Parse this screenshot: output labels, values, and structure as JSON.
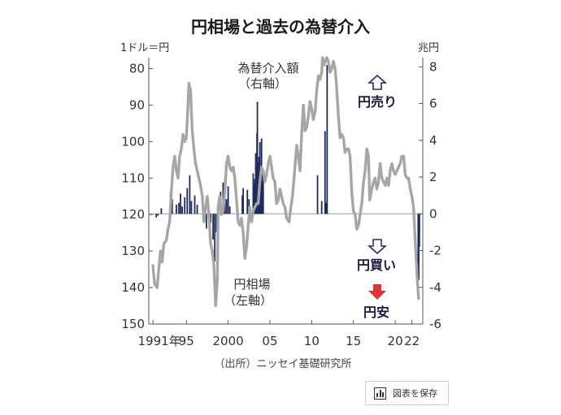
{
  "chart_data": {
    "type": "line",
    "title": "円相場と過去の為替介入",
    "left_unit": "1ドル＝円",
    "right_unit": "兆円",
    "left_axis": {
      "ticks": [
        80,
        90,
        100,
        110,
        120,
        130,
        140,
        150
      ],
      "range": [
        77,
        150
      ],
      "inverted": true
    },
    "right_axis": {
      "ticks": [
        8,
        6,
        4,
        2,
        0,
        -2,
        -4,
        -6
      ],
      "range": [
        8.5,
        -6
      ]
    },
    "x_ticks": [
      {
        "year": 1991,
        "label": "1991年"
      },
      {
        "year": 1995,
        "label": "95"
      },
      {
        "year": 2000,
        "label": "2000"
      },
      {
        "year": 2005,
        "label": "05"
      },
      {
        "year": 2010,
        "label": "10"
      },
      {
        "year": 2015,
        "label": "15"
      },
      {
        "year": 2020,
        "label": "20"
      },
      {
        "year": 2022,
        "label": "22"
      }
    ],
    "x_range": [
      1990.5,
      2023.3
    ],
    "series": [
      {
        "name": "円相場",
        "axis": "left",
        "color": "#a6a6a6",
        "points": [
          [
            1991.0,
            134
          ],
          [
            1991.2,
            139
          ],
          [
            1991.5,
            140
          ],
          [
            1991.7,
            135
          ],
          [
            1991.9,
            130
          ],
          [
            1992.1,
            133
          ],
          [
            1992.3,
            128
          ],
          [
            1992.6,
            127
          ],
          [
            1992.8,
            124
          ],
          [
            1993.0,
            122
          ],
          [
            1993.2,
            114
          ],
          [
            1993.4,
            107
          ],
          [
            1993.6,
            104
          ],
          [
            1993.8,
            108
          ],
          [
            1994.0,
            110
          ],
          [
            1994.2,
            104
          ],
          [
            1994.4,
            102
          ],
          [
            1994.6,
            98
          ],
          [
            1994.8,
            100
          ],
          [
            1995.0,
            99
          ],
          [
            1995.2,
            90
          ],
          [
            1995.3,
            84
          ],
          [
            1995.5,
            86
          ],
          [
            1995.7,
            97
          ],
          [
            1995.9,
            102
          ],
          [
            1996.1,
            106
          ],
          [
            1996.3,
            108
          ],
          [
            1996.5,
            110
          ],
          [
            1996.7,
            112
          ],
          [
            1996.9,
            115
          ],
          [
            1997.1,
            122
          ],
          [
            1997.3,
            118
          ],
          [
            1997.5,
            115
          ],
          [
            1997.7,
            120
          ],
          [
            1997.9,
            128
          ],
          [
            1998.1,
            130
          ],
          [
            1998.3,
            134
          ],
          [
            1998.5,
            145
          ],
          [
            1998.7,
            138
          ],
          [
            1998.8,
            118
          ],
          [
            1999.0,
            115
          ],
          [
            1999.2,
            120
          ],
          [
            1999.4,
            119
          ],
          [
            1999.6,
            114
          ],
          [
            1999.8,
            106
          ],
          [
            2000.0,
            104
          ],
          [
            2000.2,
            107
          ],
          [
            2000.4,
            108
          ],
          [
            2000.6,
            107
          ],
          [
            2000.8,
            110
          ],
          [
            2001.0,
            116
          ],
          [
            2001.2,
            122
          ],
          [
            2001.4,
            123
          ],
          [
            2001.6,
            121
          ],
          [
            2001.8,
            125
          ],
          [
            2002.0,
            132
          ],
          [
            2002.2,
            129
          ],
          [
            2002.4,
            123
          ],
          [
            2002.6,
            118
          ],
          [
            2002.8,
            122
          ],
          [
            2003.0,
            119
          ],
          [
            2003.2,
            118
          ],
          [
            2003.4,
            117
          ],
          [
            2003.6,
            117
          ],
          [
            2003.8,
            111
          ],
          [
            2004.0,
            107
          ],
          [
            2004.2,
            108
          ],
          [
            2004.4,
            111
          ],
          [
            2004.6,
            109
          ],
          [
            2004.8,
            106
          ],
          [
            2005.0,
            104
          ],
          [
            2005.2,
            107
          ],
          [
            2005.4,
            110
          ],
          [
            2005.6,
            111
          ],
          [
            2005.8,
            117
          ],
          [
            2006.0,
            116
          ],
          [
            2006.2,
            113
          ],
          [
            2006.4,
            115
          ],
          [
            2006.6,
            117
          ],
          [
            2006.8,
            118
          ],
          [
            2007.0,
            121
          ],
          [
            2007.3,
            122
          ],
          [
            2007.5,
            118
          ],
          [
            2007.7,
            115
          ],
          [
            2008.0,
            107
          ],
          [
            2008.2,
            101
          ],
          [
            2008.4,
            104
          ],
          [
            2008.6,
            108
          ],
          [
            2008.8,
            98
          ],
          [
            2009.0,
            90
          ],
          [
            2009.2,
            97
          ],
          [
            2009.4,
            96
          ],
          [
            2009.6,
            93
          ],
          [
            2009.8,
            89
          ],
          [
            2010.0,
            91
          ],
          [
            2010.2,
            94
          ],
          [
            2010.4,
            92
          ],
          [
            2010.6,
            86
          ],
          [
            2010.8,
            82
          ],
          [
            2011.0,
            83
          ],
          [
            2011.2,
            81
          ],
          [
            2011.3,
            77
          ],
          [
            2011.5,
            79
          ],
          [
            2011.8,
            77
          ],
          [
            2012.0,
            78
          ],
          [
            2012.2,
            81
          ],
          [
            2012.4,
            80
          ],
          [
            2012.6,
            78
          ],
          [
            2012.8,
            80
          ],
          [
            2012.95,
            84
          ],
          [
            2013.2,
            93
          ],
          [
            2013.4,
            99
          ],
          [
            2013.6,
            98
          ],
          [
            2013.8,
            99
          ],
          [
            2014.0,
            103
          ],
          [
            2014.2,
            102
          ],
          [
            2014.4,
            102
          ],
          [
            2014.6,
            104
          ],
          [
            2014.8,
            114
          ],
          [
            2015.0,
            119
          ],
          [
            2015.2,
            120
          ],
          [
            2015.4,
            124
          ],
          [
            2015.6,
            123
          ],
          [
            2015.8,
            120
          ],
          [
            2016.0,
            117
          ],
          [
            2016.2,
            111
          ],
          [
            2016.4,
            108
          ],
          [
            2016.6,
            102
          ],
          [
            2016.8,
            104
          ],
          [
            2016.95,
            116
          ],
          [
            2017.2,
            113
          ],
          [
            2017.4,
            111
          ],
          [
            2017.6,
            110
          ],
          [
            2017.8,
            113
          ],
          [
            2018.0,
            111
          ],
          [
            2018.2,
            106
          ],
          [
            2018.4,
            110
          ],
          [
            2018.6,
            111
          ],
          [
            2018.8,
            112
          ],
          [
            2019.0,
            110
          ],
          [
            2019.2,
            112
          ],
          [
            2019.4,
            108
          ],
          [
            2019.6,
            106
          ],
          [
            2019.8,
            108
          ],
          [
            2020.0,
            109
          ],
          [
            2020.2,
            108
          ],
          [
            2020.4,
            107
          ],
          [
            2020.6,
            106
          ],
          [
            2020.8,
            104
          ],
          [
            2021.0,
            104
          ],
          [
            2021.2,
            109
          ],
          [
            2021.4,
            110
          ],
          [
            2021.6,
            110
          ],
          [
            2021.8,
            113
          ],
          [
            2022.0,
            115
          ],
          [
            2022.2,
            118
          ],
          [
            2022.35,
            125
          ],
          [
            2022.5,
            132
          ],
          [
            2022.65,
            138
          ],
          [
            2022.8,
            143
          ]
        ]
      },
      {
        "name": "為替介入額",
        "axis": "right",
        "color": "#1f2a5c",
        "bars": [
          [
            1991.4,
            -0.2
          ],
          [
            1991.6,
            -0.1
          ],
          [
            1992.0,
            0.3
          ],
          [
            1993.1,
            1.2
          ],
          [
            1993.3,
            0.8
          ],
          [
            1993.8,
            0.5
          ],
          [
            1994.1,
            0.6
          ],
          [
            1994.3,
            1.1
          ],
          [
            1994.5,
            0.4
          ],
          [
            1994.8,
            0.9
          ],
          [
            1995.1,
            1.4
          ],
          [
            1995.4,
            2.1
          ],
          [
            1995.6,
            0.7
          ],
          [
            1996.0,
            1.0
          ],
          [
            1996.3,
            0.5
          ],
          [
            1997.4,
            -0.8
          ],
          [
            1997.9,
            -0.5
          ],
          [
            1998.2,
            -1.4
          ],
          [
            1998.4,
            -2.6
          ],
          [
            1998.6,
            -1.0
          ],
          [
            1999.1,
            1.2
          ],
          [
            1999.4,
            1.7
          ],
          [
            1999.6,
            1.9
          ],
          [
            1999.8,
            0.8
          ],
          [
            2000.0,
            1.5
          ],
          [
            2000.2,
            0.4
          ],
          [
            2001.7,
            1.0
          ],
          [
            2001.8,
            1.4
          ],
          [
            2002.3,
            1.3
          ],
          [
            2002.5,
            0.8
          ],
          [
            2003.0,
            2.2
          ],
          [
            2003.1,
            1.6
          ],
          [
            2003.2,
            1.9
          ],
          [
            2003.3,
            3.3
          ],
          [
            2003.4,
            2.0
          ],
          [
            2003.45,
            4.4
          ],
          [
            2003.5,
            6.1
          ],
          [
            2003.55,
            2.3
          ],
          [
            2003.6,
            2.8
          ],
          [
            2003.7,
            3.1
          ],
          [
            2003.8,
            3.9
          ],
          [
            2003.9,
            2.5
          ],
          [
            2004.0,
            4.1
          ],
          [
            2004.1,
            2.5
          ],
          [
            2004.2,
            1.8
          ],
          [
            2010.7,
            2.1
          ],
          [
            2011.2,
            0.7
          ],
          [
            2011.6,
            4.5
          ],
          [
            2011.7,
            0.6
          ],
          [
            2011.85,
            8.1
          ],
          [
            2022.75,
            -2.8
          ],
          [
            2022.82,
            -3.6
          ],
          [
            2022.9,
            -1.8
          ]
        ]
      }
    ],
    "annotations": {
      "intervention_label": [
        "為替介入額",
        "（右軸）"
      ],
      "rate_label": [
        "円相場",
        "（左軸）"
      ],
      "yen_sell": "円売り",
      "yen_buy": "円買い",
      "yen_weak": "円安"
    },
    "colors": {
      "line": "#a6a6a6",
      "bars": "#1f2a5c",
      "hollow_arrow": "#2b2f6b",
      "weak_arrow": "#d9363e"
    }
  },
  "source": "（出所）ニッセイ基礎研究所",
  "save_button": {
    "label": "図表を保存",
    "icon": "chart-icon"
  }
}
